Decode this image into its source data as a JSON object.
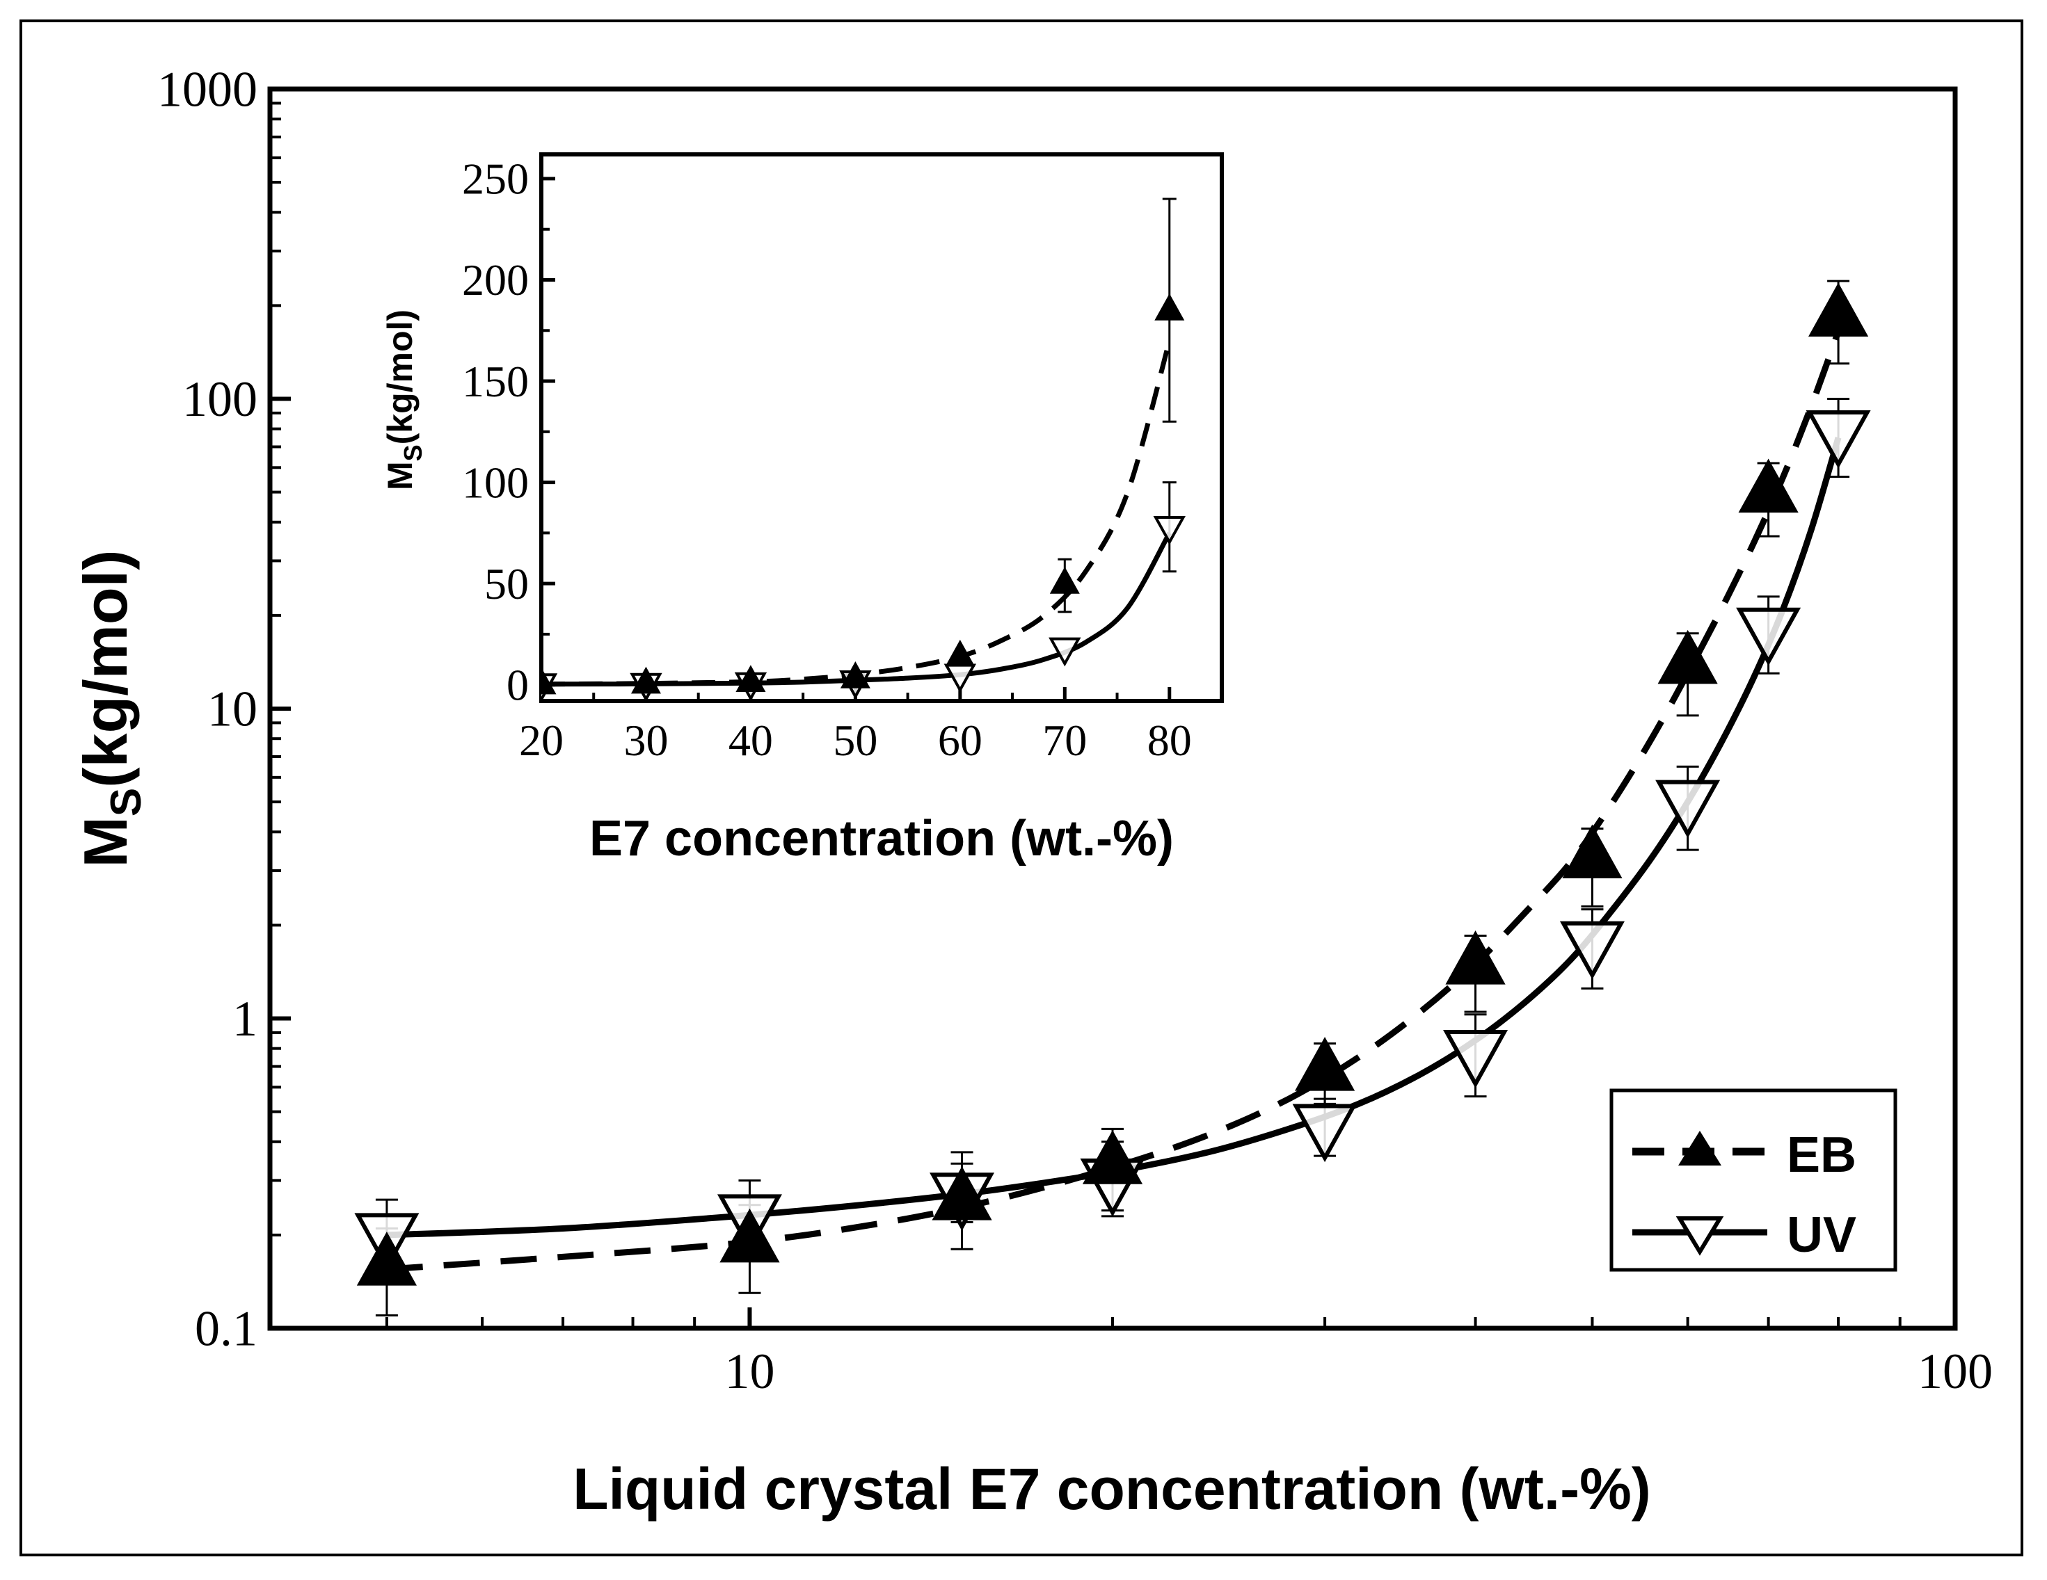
{
  "chart_data": [
    {
      "id": "main",
      "type": "scatter",
      "xscale": "log",
      "yscale": "log",
      "xlim": [
        4,
        100
      ],
      "ylim": [
        0.1,
        1000
      ],
      "xlabel": "Liquid crystal E7 concentration (wt.-%)",
      "ylabel": "M",
      "ylabel_sub": "S",
      "ylabel_rest": "(kg/mol)",
      "xticks": [
        {
          "v": 10,
          "label": "10"
        },
        {
          "v": 100,
          "label": "100"
        }
      ],
      "yticks": [
        {
          "v": 0.1,
          "label": "0.1"
        },
        {
          "v": 1,
          "label": "1"
        },
        {
          "v": 10,
          "label": "10"
        },
        {
          "v": 100,
          "label": "100"
        },
        {
          "v": 1000,
          "label": "1000"
        }
      ],
      "legend": {
        "position": "bottom-right",
        "entries": [
          {
            "series": "EB",
            "label": "EB"
          },
          {
            "series": "UV",
            "label": "UV"
          }
        ]
      },
      "series": [
        {
          "name": "EB",
          "marker": "triangle-up-filled",
          "line": "dashed",
          "x": [
            5,
            10,
            15,
            20,
            30,
            40,
            50,
            60,
            70,
            80
          ],
          "y": [
            0.16,
            0.19,
            0.26,
            0.34,
            0.68,
            1.5,
            3.3,
            14,
            50,
            185
          ],
          "yerr_low": [
            0.05,
            0.06,
            0.08,
            0.1,
            0.15,
            0.45,
            1.0,
            4.5,
            14,
            55
          ],
          "yerr_high": [
            0.05,
            0.06,
            0.08,
            0.1,
            0.15,
            0.35,
            0.8,
            3.5,
            12,
            55
          ]
        },
        {
          "name": "UV",
          "marker": "triangle-down-open",
          "line": "solid",
          "x": [
            5,
            10,
            15,
            20,
            30,
            40,
            50,
            60,
            70,
            80
          ],
          "y": [
            0.2,
            0.23,
            0.27,
            0.3,
            0.45,
            0.78,
            1.75,
            5,
            18,
            78
          ],
          "yerr_low": [
            0.03,
            0.04,
            0.05,
            0.07,
            0.09,
            0.22,
            0.5,
            1.5,
            5,
            22
          ],
          "yerr_high": [
            0.06,
            0.07,
            0.1,
            0.1,
            0.1,
            0.25,
            0.5,
            1.5,
            5,
            22
          ]
        }
      ],
      "fits": [
        {
          "series": "EB",
          "line": "dashed",
          "x": [
            5,
            7,
            10,
            13,
            16,
            20,
            24,
            28,
            32,
            36,
            40,
            44,
            48,
            52,
            56,
            60,
            64,
            68,
            72,
            76,
            80
          ],
          "y": [
            0.155,
            0.17,
            0.19,
            0.22,
            0.26,
            0.33,
            0.42,
            0.55,
            0.75,
            1.05,
            1.5,
            2.2,
            3.2,
            5.0,
            8.0,
            13,
            21,
            34,
            56,
            95,
            165
          ]
        },
        {
          "series": "UV",
          "line": "solid",
          "x": [
            5,
            7,
            10,
            13,
            16,
            20,
            24,
            28,
            32,
            36,
            40,
            44,
            48,
            52,
            56,
            60,
            64,
            68,
            72,
            76,
            80
          ],
          "y": [
            0.2,
            0.21,
            0.232,
            0.255,
            0.28,
            0.32,
            0.37,
            0.44,
            0.53,
            0.66,
            0.85,
            1.13,
            1.55,
            2.25,
            3.3,
            5.0,
            7.8,
            12.5,
            21,
            38,
            75
          ]
        }
      ]
    },
    {
      "id": "inset",
      "type": "scatter",
      "xscale": "linear",
      "yscale": "linear",
      "xlim": [
        20,
        85
      ],
      "ylim": [
        -8,
        262
      ],
      "xlabel": "E7 concentration (wt.-%)",
      "ylabel": "M",
      "ylabel_sub": "S",
      "ylabel_rest": "(kg/mol)",
      "xticks": [
        {
          "v": 20,
          "label": "20"
        },
        {
          "v": 30,
          "label": "30"
        },
        {
          "v": 40,
          "label": "40"
        },
        {
          "v": 50,
          "label": "50"
        },
        {
          "v": 60,
          "label": "60"
        },
        {
          "v": 70,
          "label": "70"
        },
        {
          "v": 80,
          "label": "80"
        }
      ],
      "yticks": [
        {
          "v": 0,
          "label": "0"
        },
        {
          "v": 50,
          "label": "50"
        },
        {
          "v": 100,
          "label": "100"
        },
        {
          "v": 150,
          "label": "150"
        },
        {
          "v": 200,
          "label": "200"
        },
        {
          "v": 250,
          "label": "250"
        }
      ],
      "series": [
        {
          "name": "EB",
          "marker": "triangle-up-filled",
          "line": "dashed",
          "x": [
            20,
            30,
            40,
            50,
            60,
            70,
            80
          ],
          "y": [
            0.34,
            0.68,
            1.5,
            3.3,
            14,
            50,
            185
          ],
          "yerr_low": [
            0,
            0,
            0,
            0,
            0,
            14,
            55
          ],
          "yerr_high": [
            0,
            0,
            0,
            0,
            0,
            12,
            55
          ]
        },
        {
          "name": "UV",
          "marker": "triangle-down-open",
          "line": "solid",
          "x": [
            20,
            30,
            40,
            50,
            60,
            70,
            80
          ],
          "y": [
            0.3,
            0.45,
            0.78,
            1.75,
            5,
            18,
            78
          ],
          "yerr_low": [
            0,
            0,
            0,
            0,
            0,
            0,
            22
          ],
          "yerr_high": [
            0,
            0,
            0,
            0,
            0,
            0,
            22
          ]
        }
      ],
      "fits": [
        {
          "series": "EB",
          "line": "dashed",
          "x": [
            20,
            30,
            40,
            45,
            50,
            55,
            60,
            64,
            68,
            72,
            76,
            80
          ],
          "y": [
            0.3,
            0.7,
            1.5,
            2.8,
            5,
            8.5,
            14,
            22,
            34,
            56,
            95,
            170
          ]
        },
        {
          "series": "UV",
          "line": "solid",
          "x": [
            20,
            30,
            40,
            45,
            50,
            55,
            60,
            64,
            68,
            72,
            76,
            80
          ],
          "y": [
            0.3,
            0.45,
            0.85,
            1.3,
            2.25,
            3.3,
            5,
            7.8,
            12.5,
            21,
            38,
            75
          ]
        }
      ]
    }
  ]
}
